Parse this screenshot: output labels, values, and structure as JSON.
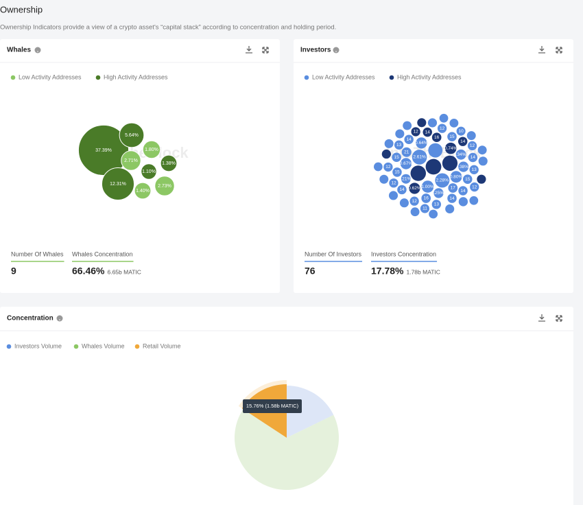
{
  "header": {
    "title": "Ownership",
    "subtitle": "Ownership Indicators provide a view of a crypto asset's “capital stack” according to concentration and holding period."
  },
  "watermark": "IntoTheBlock",
  "whales": {
    "title": "Whales",
    "legend": [
      "Low Activity Addresses",
      "High Activity Addresses"
    ],
    "colors": [
      "#8cc764",
      "#4a7b28"
    ],
    "bubbles": [
      {
        "value": 37.39,
        "label": "37.39%",
        "group": 1
      },
      {
        "value": 5.64,
        "label": "5.64%",
        "group": 1
      },
      {
        "value": 1.8,
        "label": "1.80%",
        "group": 0
      },
      {
        "value": 2.71,
        "label": "2.71%",
        "group": 0
      },
      {
        "value": 1.1,
        "label": "1.10%",
        "group": 1
      },
      {
        "value": 1.38,
        "label": "1.38%",
        "group": 1
      },
      {
        "value": 12.31,
        "label": "12.31%",
        "group": 1
      },
      {
        "value": 1.4,
        "label": "1.40%",
        "group": 0
      },
      {
        "value": 2.73,
        "label": "2.73%",
        "group": 0
      }
    ],
    "stats": [
      {
        "label": "Number Of Whales",
        "value": "9"
      },
      {
        "label": "Whales Concentration",
        "value": "66.46%",
        "note": "6.65b MATIC"
      }
    ]
  },
  "investors": {
    "title": "Investors",
    "legend": [
      "Low Activity Addresses",
      "High Activity Addresses"
    ],
    "colors": [
      "#5a8ddf",
      "#1d3876"
    ],
    "bubbles": [
      {
        "value": 3.2,
        "group": 1
      },
      {
        "value": 3.0,
        "group": 1
      },
      {
        "value": 2.9,
        "group": 1
      },
      {
        "value": 2.61,
        "label": "2.61%",
        "group": 0
      },
      {
        "value": 2.28,
        "label": "2.28%",
        "group": 0
      },
      {
        "value": 2.2,
        "group": 0
      },
      {
        "value": 1.0,
        "label": "1.00%",
        "group": 0
      },
      {
        "value": 0.8,
        "label": "0.80%",
        "group": 0
      },
      {
        "value": 0.74,
        "label": "0.74%",
        "group": 1
      },
      {
        "value": 0.67,
        "label": "0.67%",
        "group": 0
      },
      {
        "value": 0.64,
        "label": "0.64%",
        "group": 0
      },
      {
        "value": 0.62,
        "label": "0.62%",
        "group": 1
      },
      {
        "value": 0.38,
        "label": ".38%",
        "group": 0
      },
      {
        "value": 0.34,
        "label": ".34%",
        "group": 0
      },
      {
        "value": 0.25,
        "label": ".25%",
        "group": 0
      },
      {
        "value": 0.21,
        "label": ".21%",
        "group": 0
      },
      {
        "value": 0.21,
        "label": "21",
        "group": 0
      },
      {
        "value": 0.17,
        "label": "17",
        "group": 0
      },
      {
        "value": 0.16,
        "label": "16",
        "group": 1
      },
      {
        "value": 0.16,
        "label": "16",
        "group": 0
      },
      {
        "value": 0.15,
        "label": "15",
        "group": 0
      },
      {
        "value": 0.15,
        "label": "15",
        "group": 0
      },
      {
        "value": 0.15,
        "label": "15",
        "group": 0
      },
      {
        "value": 0.15,
        "label": "15",
        "group": 0
      },
      {
        "value": 0.14,
        "label": "14",
        "group": 0
      },
      {
        "value": 0.14,
        "label": "14",
        "group": 1
      },
      {
        "value": 0.14,
        "label": "14",
        "group": 0
      },
      {
        "value": 0.14,
        "label": "14",
        "group": 0
      },
      {
        "value": 0.14,
        "label": "14",
        "group": 0
      },
      {
        "value": 0.14,
        "label": "14",
        "group": 1
      },
      {
        "value": 0.14,
        "label": "14",
        "group": 0
      },
      {
        "value": 0.13,
        "label": "13",
        "group": 0
      },
      {
        "value": 0.13,
        "label": "13",
        "group": 0
      },
      {
        "value": 0.13,
        "label": "13",
        "group": 0
      },
      {
        "value": 0.12,
        "label": "12",
        "group": 0
      },
      {
        "value": 0.12,
        "label": "12",
        "group": 1
      },
      {
        "value": 0.12,
        "label": "12",
        "group": 0
      },
      {
        "value": 0.12,
        "label": "12",
        "group": 0
      },
      {
        "value": 0.12,
        "label": "12",
        "group": 0
      },
      {
        "value": 0.12,
        "label": "12",
        "group": 0
      },
      {
        "value": 0.12,
        "label": "12",
        "group": 0
      },
      {
        "value": 0.11,
        "label": "11",
        "group": 0
      },
      {
        "value": 0.1,
        "label": "10",
        "group": 0
      },
      {
        "value": 0.12,
        "group": 0
      },
      {
        "value": 0.12,
        "group": 1
      },
      {
        "value": 0.11,
        "group": 0
      },
      {
        "value": 0.11,
        "group": 0
      },
      {
        "value": 0.11,
        "group": 1
      },
      {
        "value": 0.1,
        "group": 0
      },
      {
        "value": 0.1,
        "group": 0
      },
      {
        "value": 0.1,
        "group": 0
      },
      {
        "value": 0.1,
        "group": 1
      },
      {
        "value": 0.1,
        "group": 0
      },
      {
        "value": 0.09,
        "group": 0
      },
      {
        "value": 0.09,
        "group": 0
      },
      {
        "value": 0.09,
        "group": 0
      },
      {
        "value": 0.09,
        "group": 0
      },
      {
        "value": 0.08,
        "group": 0
      },
      {
        "value": 0.08,
        "group": 0
      },
      {
        "value": 0.08,
        "group": 0
      },
      {
        "value": 0.08,
        "group": 0
      },
      {
        "value": 0.07,
        "group": 0
      },
      {
        "value": 0.07,
        "group": 0
      },
      {
        "value": 0.07,
        "group": 0
      }
    ],
    "stats": [
      {
        "label": "Number Of Investors",
        "value": "76"
      },
      {
        "label": "Investors Concentration",
        "value": "17.78%",
        "note": "1.78b MATIC"
      }
    ]
  },
  "concentration": {
    "title": "Concentration",
    "legend": [
      "Investors Volume",
      "Whales Volume",
      "Retail Volume"
    ],
    "colors": [
      "#5a8ddf",
      "#8cc764",
      "#f0a83a"
    ],
    "faded": [
      "#dde6f7",
      "#e5f1dc",
      "#f0a83a"
    ],
    "values": [
      17.78,
      66.46,
      15.76
    ],
    "tooltip": "15.76% (1.58b MATIC)"
  }
}
